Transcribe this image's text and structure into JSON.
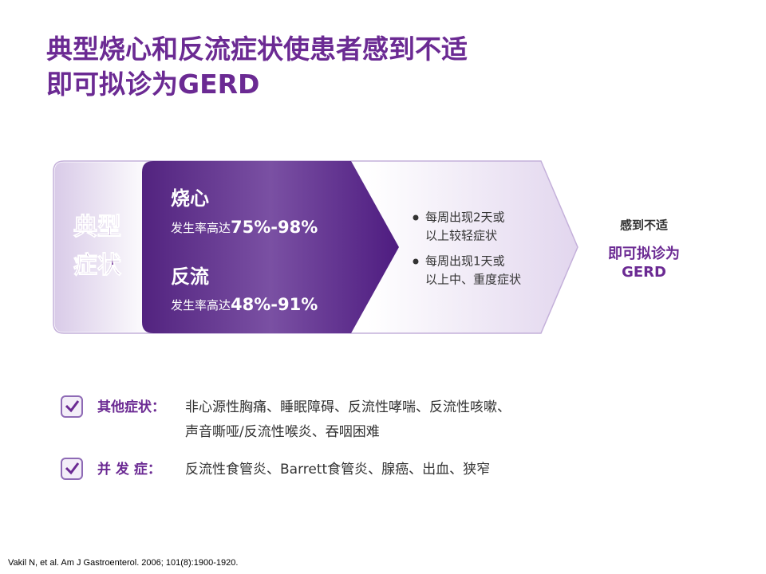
{
  "title": {
    "line1": "典型烧心和反流症状使患者感到不适",
    "line2": "即可拟诊为GERD"
  },
  "diagram": {
    "typical": {
      "line1": "典型",
      "line2": "症状"
    },
    "symptoms": [
      {
        "name": "烧心",
        "rate_label": "发生率高达",
        "rate": "75%-98%"
      },
      {
        "name": "反流",
        "rate_label": "发生率高达",
        "rate": "48%-91%"
      }
    ],
    "bullets": [
      {
        "line1": "每周出现2天或",
        "line2": "以上较轻症状"
      },
      {
        "line1": "每周出现1天或",
        "line2": "以上中、重度症状"
      }
    ],
    "result": {
      "line1": "感到不适",
      "line2": "即可拟诊为",
      "line3": "GERD"
    }
  },
  "list": [
    {
      "label": "其他症状：",
      "line1": "非心源性胸痛、睡眠障碍、反流性哮喘、反流性咳嗽、",
      "line2": "声音嘶哑/反流性喉炎、吞咽困难"
    },
    {
      "label": "并 发 症：",
      "line1": "反流性食管炎、Barrett食管炎、腺癌、出血、狭窄"
    }
  ],
  "footnote": "Vakil N, et al. Am J Gastroenterol. 2006; 101(8):1900-1920."
}
